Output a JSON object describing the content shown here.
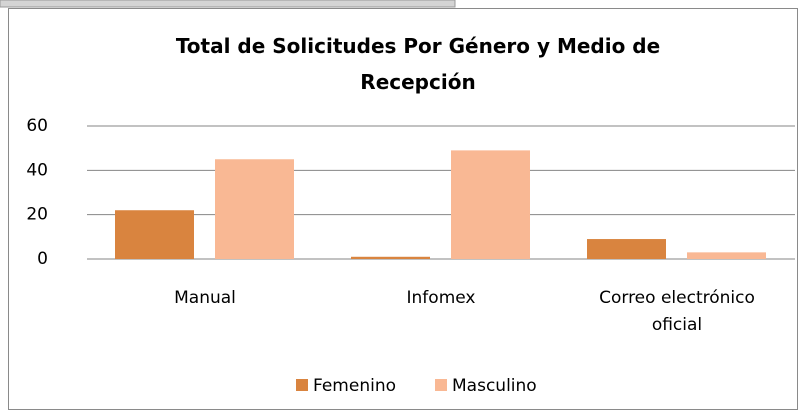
{
  "chart_data": {
    "type": "bar",
    "title": "Total de Solicitudes Por Género y Medio de Recepción",
    "categories": [
      "Manual",
      "Infomex",
      "Correo electrónico oficial"
    ],
    "series": [
      {
        "name": "Femenino",
        "color": "#d9843f",
        "values": [
          22,
          1,
          9
        ]
      },
      {
        "name": "Masculino",
        "color": "#f9b894",
        "values": [
          45,
          49,
          3
        ]
      }
    ],
    "ylim": [
      0,
      60
    ],
    "yticks": [
      0,
      20,
      40,
      60
    ],
    "grid": true,
    "legend": "bottom"
  }
}
